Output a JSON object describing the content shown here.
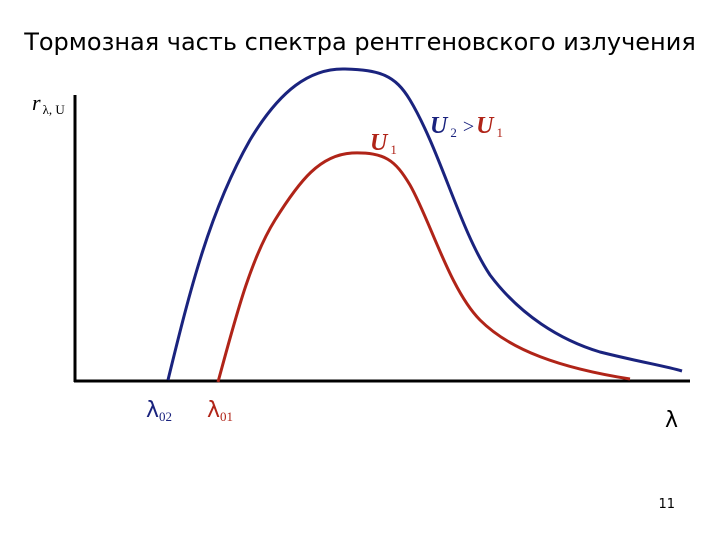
{
  "title": "Тормозная часть спектра рентгеновского излучения",
  "labels": {
    "y_axis": {
      "main": "r",
      "sub": "λ, U"
    },
    "x_axis": "λ",
    "lambda_02": {
      "main": "λ",
      "sub": "02"
    },
    "lambda_01": {
      "main": "λ",
      "sub": "01"
    },
    "curve_u1": {
      "main": "U",
      "sub": "1"
    },
    "relation": {
      "left": {
        "main": "U",
        "sub": "2"
      },
      "op": ">",
      "right": {
        "main": "U",
        "sub": "1"
      }
    }
  },
  "page_number": "11"
}
